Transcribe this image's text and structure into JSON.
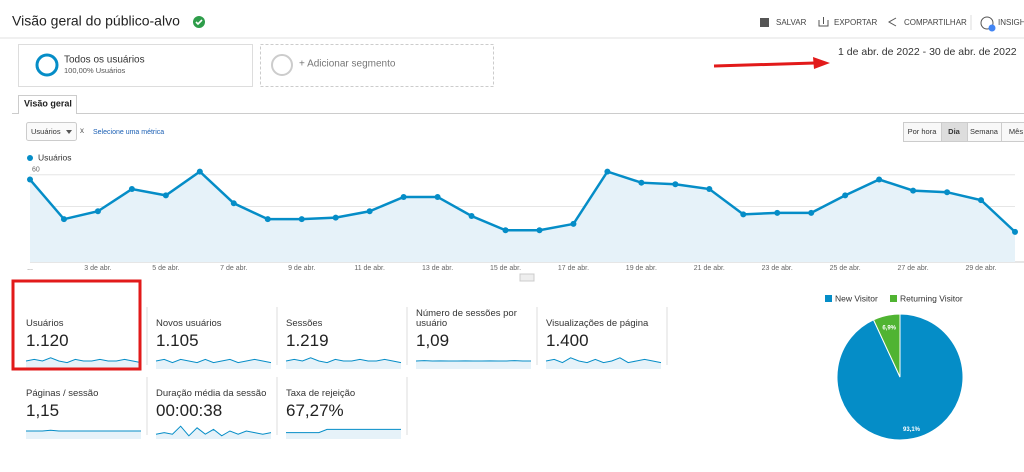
{
  "header": {
    "title": "Visão geral do público-alvo",
    "actions": [
      "SALVAR",
      "EXPORTAR",
      "COMPARTILHAR",
      "INSIGHTS"
    ]
  },
  "segments": [
    {
      "name": "Todos os usuários",
      "detail": "100,00% Usuários"
    },
    {
      "name": "+ Adicionar segmento"
    }
  ],
  "date_range": "1 de abr. de 2022 - 30 de abr. de 2022",
  "tabs": [
    "Visão geral"
  ],
  "metric_selector": {
    "selected": "Usuários",
    "remove": "x",
    "add": "Selecione uma métrica"
  },
  "granularity": [
    "Por hora",
    "Dia",
    "Semana",
    "Mês"
  ],
  "active_granularity": 1,
  "chart_data": [
    {
      "type": "line",
      "categories": [
        "...",
        null,
        "3 de abr.",
        null,
        "5 de abr.",
        null,
        "7 de abr.",
        null,
        "9 de abr.",
        null,
        "11 de abr.",
        null,
        "13 de abr.",
        null,
        "15 de abr.",
        null,
        "17 de abr.",
        null,
        "19 de abr.",
        null,
        "21 de abr.",
        null,
        "23 de abr.",
        null,
        "25 de abr.",
        null,
        "27 de abr.",
        null,
        "29 de abr.",
        null
      ],
      "series": [
        {
          "name": "Usuários",
          "color": "#058dc7",
          "values": [
            57,
            32,
            37,
            51,
            47,
            62,
            42,
            32,
            32,
            33,
            37,
            46,
            46,
            34,
            25,
            25,
            29,
            62,
            55,
            54,
            51,
            35,
            36,
            36,
            47,
            57,
            50,
            49,
            44,
            24
          ]
        }
      ],
      "ylim": [
        5,
        63
      ],
      "yticks": [
        20,
        40,
        60
      ],
      "grid": true
    },
    {
      "type": "pie",
      "categories": [
        "New Visitor",
        "Returning Visitor"
      ],
      "values": [
        93.1,
        6.9
      ],
      "value_labels": [
        "93,1%",
        "6,9%"
      ],
      "colors": [
        "#058dc7",
        "#50b432"
      ]
    }
  ],
  "metrics": [
    {
      "label": "Usuários",
      "value": "1.120",
      "sparkline": [
        5,
        6,
        5,
        7,
        5,
        4,
        6,
        5,
        5,
        6,
        5,
        5,
        6,
        5,
        4
      ]
    },
    {
      "label": "Novos usuários",
      "value": "1.105",
      "sparkline": [
        5,
        6,
        4,
        6,
        5,
        4,
        6,
        4,
        5,
        6,
        4,
        5,
        6,
        5,
        4
      ]
    },
    {
      "label": "Sessões",
      "value": "1.219",
      "sparkline": [
        5,
        6,
        5,
        7,
        5,
        4,
        6,
        5,
        5,
        6,
        5,
        5,
        6,
        5,
        4
      ]
    },
    {
      "label": "Número de sessões por usuário",
      "value": "1,09",
      "sparkline": [
        5,
        5.2,
        5,
        5.1,
        5,
        5,
        5.1,
        5,
        5,
        5.1,
        5,
        5,
        5.2,
        5,
        5
      ]
    },
    {
      "label": "Visualizações de página",
      "value": "1.400",
      "sparkline": [
        5,
        6,
        4,
        7,
        5,
        4,
        6,
        4,
        5,
        7,
        4,
        5,
        6,
        5,
        4
      ]
    },
    {
      "label": "Páginas / sessão",
      "value": "1,15",
      "sparkline": [
        5,
        5,
        5,
        5.5,
        5,
        5,
        5,
        5,
        5,
        5,
        5,
        5,
        5,
        5,
        5
      ]
    },
    {
      "label": "Duração média da sessão",
      "value": "00:00:38",
      "sparkline": [
        3,
        4,
        3,
        8,
        2,
        7,
        3,
        6,
        2,
        5,
        3,
        5,
        4,
        3,
        4
      ]
    },
    {
      "label": "Taxa de rejeição",
      "value": "67,27%",
      "sparkline": [
        4,
        4,
        4,
        4,
        4,
        6,
        6,
        6,
        6,
        6,
        6,
        6,
        6,
        6,
        6
      ]
    }
  ]
}
